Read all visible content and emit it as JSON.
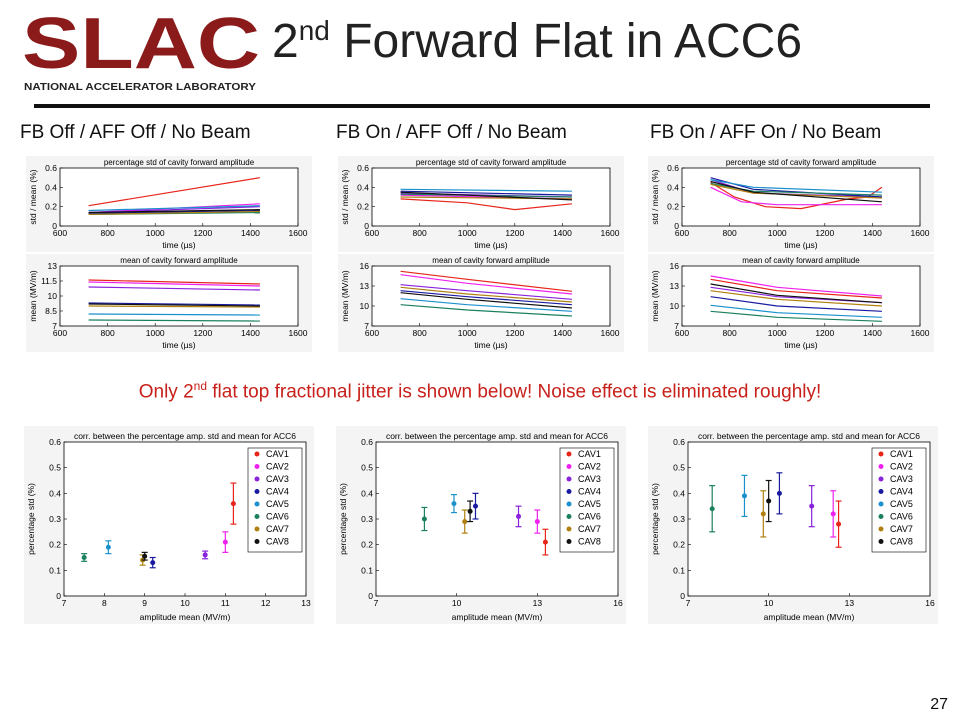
{
  "header": {
    "logo_text": "SLAC",
    "logo_subtitle": "NATIONAL ACCELERATOR LABORATORY",
    "title_main": "2",
    "title_sup": "nd",
    "title_rest": " Forward Flat in ACC6"
  },
  "subtitles": [
    "FB Off / AFF Off / No Beam",
    "FB On / AFF Off / No Beam",
    "FB On / AFF On / No Beam"
  ],
  "note": {
    "before": "Only 2",
    "sup": "nd",
    "after": " flat top fractional jitter is shown below! Noise effect is eliminated roughly!"
  },
  "page_number": "27",
  "colors": {
    "logo": "#8b1a1a",
    "note": "#c8201a",
    "cav": [
      "#e8251a",
      "#ee22ee",
      "#8822dd",
      "#1a1aa0",
      "#1a90cc",
      "#1a8060",
      "#b08010",
      "#111111"
    ]
  },
  "chart_data": [
    {
      "type": "line",
      "title": "percentage std of cavity forward amplitude",
      "xlabel": "time (µs)",
      "ylabel": "std / mean (%)",
      "xlim": [
        600,
        1600
      ],
      "ylim": [
        0,
        0.6
      ],
      "xticks": [
        600,
        800,
        1000,
        1200,
        1400,
        1600
      ],
      "yticks": [
        0,
        0.2,
        0.4,
        0.6
      ],
      "yticklabels": [
        "0",
        "0.2",
        "0.4",
        "0.6"
      ],
      "series": [
        {
          "values": [
            [
              720,
              0.21
            ],
            [
              1440,
              0.5
            ]
          ]
        },
        {
          "values": [
            [
              720,
              0.14
            ],
            [
              1440,
              0.23
            ]
          ]
        },
        {
          "values": [
            [
              720,
              0.14
            ],
            [
              1440,
              0.2
            ]
          ]
        },
        {
          "values": [
            [
              720,
              0.13
            ],
            [
              1440,
              0.16
            ]
          ]
        },
        {
          "values": [
            [
              720,
              0.16
            ],
            [
              1440,
              0.21
            ]
          ]
        },
        {
          "values": [
            [
              720,
              0.12
            ],
            [
              1440,
              0.14
            ]
          ]
        },
        {
          "values": [
            [
              720,
              0.12
            ],
            [
              1440,
              0.15
            ]
          ]
        },
        {
          "values": [
            [
              720,
              0.14
            ],
            [
              1440,
              0.17
            ]
          ]
        }
      ]
    },
    {
      "type": "line",
      "title": "mean of cavity forward amplitude",
      "xlabel": "time (µs)",
      "ylabel": "mean (MV/m)",
      "xlim": [
        600,
        1600
      ],
      "ylim": [
        7,
        13
      ],
      "xticks": [
        600,
        800,
        1000,
        1200,
        1400,
        1600
      ],
      "yticks": [
        7,
        8.5,
        10,
        11.5,
        13
      ],
      "yticklabels": [
        "7",
        "8.5",
        "10",
        "11.5",
        "13"
      ],
      "series": [
        {
          "values": [
            [
              720,
              11.6
            ],
            [
              1440,
              11.2
            ]
          ]
        },
        {
          "values": [
            [
              720,
              11.4
            ],
            [
              1440,
              11.0
            ]
          ]
        },
        {
          "values": [
            [
              720,
              10.9
            ],
            [
              1440,
              10.6
            ]
          ]
        },
        {
          "values": [
            [
              720,
              9.3
            ],
            [
              1440,
              9.1
            ]
          ]
        },
        {
          "values": [
            [
              720,
              8.2
            ],
            [
              1440,
              8.1
            ]
          ]
        },
        {
          "values": [
            [
              720,
              7.6
            ],
            [
              1440,
              7.5
            ]
          ]
        },
        {
          "values": [
            [
              720,
              9.0
            ],
            [
              1440,
              8.9
            ]
          ]
        },
        {
          "values": [
            [
              720,
              9.2
            ],
            [
              1440,
              9.0
            ]
          ]
        }
      ]
    },
    {
      "type": "line",
      "title": "percentage std of cavity forward amplitude",
      "xlabel": "time (µs)",
      "ylabel": "std / mean (%)",
      "xlim": [
        600,
        1600
      ],
      "ylim": [
        0,
        0.6
      ],
      "xticks": [
        600,
        800,
        1000,
        1200,
        1400,
        1600
      ],
      "yticks": [
        0,
        0.2,
        0.4,
        0.6
      ],
      "yticklabels": [
        "0",
        "0.2",
        "0.4",
        "0.6"
      ],
      "series": [
        {
          "values": [
            [
              720,
              0.28
            ],
            [
              1000,
              0.24
            ],
            [
              1200,
              0.17
            ],
            [
              1440,
              0.23
            ]
          ]
        },
        {
          "values": [
            [
              720,
              0.32
            ],
            [
              1440,
              0.28
            ]
          ]
        },
        {
          "values": [
            [
              720,
              0.34
            ],
            [
              1440,
              0.3
            ]
          ]
        },
        {
          "values": [
            [
              720,
              0.36
            ],
            [
              1440,
              0.32
            ]
          ]
        },
        {
          "values": [
            [
              720,
              0.38
            ],
            [
              1440,
              0.36
            ]
          ]
        },
        {
          "values": [
            [
              720,
              0.33
            ],
            [
              1440,
              0.3
            ]
          ]
        },
        {
          "values": [
            [
              720,
              0.3
            ],
            [
              1440,
              0.28
            ]
          ]
        },
        {
          "values": [
            [
              720,
              0.35
            ],
            [
              1440,
              0.27
            ]
          ]
        }
      ]
    },
    {
      "type": "line",
      "title": "mean of cavity forward amplitude",
      "xlabel": "time (µs)",
      "ylabel": "mean (MV/m)",
      "xlim": [
        600,
        1600
      ],
      "ylim": [
        7,
        16
      ],
      "xticks": [
        600,
        800,
        1000,
        1200,
        1400,
        1600
      ],
      "yticks": [
        7,
        10,
        13,
        16
      ],
      "yticklabels": [
        "7",
        "10",
        "13",
        "16"
      ],
      "series": [
        {
          "values": [
            [
              720,
              15.2
            ],
            [
              1000,
              14.0
            ],
            [
              1440,
              12.2
            ]
          ]
        },
        {
          "values": [
            [
              720,
              14.7
            ],
            [
              1000,
              13.4
            ],
            [
              1440,
              11.8
            ]
          ]
        },
        {
          "values": [
            [
              720,
              13.2
            ],
            [
              1000,
              12.3
            ],
            [
              1440,
              11.0
            ]
          ]
        },
        {
          "values": [
            [
              720,
              12.3
            ],
            [
              1000,
              11.4
            ],
            [
              1440,
              10.2
            ]
          ]
        },
        {
          "values": [
            [
              720,
              11.1
            ],
            [
              1000,
              10.2
            ],
            [
              1440,
              9.2
            ]
          ]
        },
        {
          "values": [
            [
              720,
              10.2
            ],
            [
              1000,
              9.4
            ],
            [
              1440,
              8.5
            ]
          ]
        },
        {
          "values": [
            [
              720,
              12.8
            ],
            [
              1000,
              11.8
            ],
            [
              1440,
              10.6
            ]
          ]
        },
        {
          "values": [
            [
              720,
              12.0
            ],
            [
              1000,
              11.0
            ],
            [
              1440,
              9.7
            ]
          ]
        }
      ]
    },
    {
      "type": "line",
      "title": "percentage std of cavity forward amplitude",
      "xlabel": "time (µs)",
      "ylabel": "std / mean (%)",
      "xlim": [
        600,
        1600
      ],
      "ylim": [
        0,
        0.6
      ],
      "xticks": [
        600,
        800,
        1000,
        1200,
        1400,
        1600
      ],
      "yticks": [
        0,
        0.2,
        0.4,
        0.6
      ],
      "yticklabels": [
        "0",
        "0.2",
        "0.4",
        "0.6"
      ],
      "series": [
        {
          "values": [
            [
              720,
              0.45
            ],
            [
              820,
              0.3
            ],
            [
              950,
              0.2
            ],
            [
              1100,
              0.18
            ],
            [
              1300,
              0.28
            ],
            [
              1380,
              0.3
            ],
            [
              1440,
              0.4
            ]
          ]
        },
        {
          "values": [
            [
              720,
              0.4
            ],
            [
              850,
              0.25
            ],
            [
              1000,
              0.22
            ],
            [
              1440,
              0.22
            ]
          ]
        },
        {
          "values": [
            [
              720,
              0.48
            ],
            [
              900,
              0.34
            ],
            [
              1440,
              0.3
            ]
          ]
        },
        {
          "values": [
            [
              720,
              0.5
            ],
            [
              900,
              0.38
            ],
            [
              1440,
              0.3
            ]
          ]
        },
        {
          "values": [
            [
              720,
              0.48
            ],
            [
              900,
              0.4
            ],
            [
              1440,
              0.35
            ]
          ]
        },
        {
          "values": [
            [
              720,
              0.44
            ],
            [
              900,
              0.36
            ],
            [
              1440,
              0.32
            ]
          ]
        },
        {
          "values": [
            [
              720,
              0.43
            ],
            [
              900,
              0.34
            ],
            [
              1440,
              0.29
            ]
          ]
        },
        {
          "values": [
            [
              720,
              0.46
            ],
            [
              900,
              0.35
            ],
            [
              1440,
              0.25
            ]
          ]
        }
      ]
    },
    {
      "type": "line",
      "title": "mean of cavity forward amplitude",
      "xlabel": "time (µs)",
      "ylabel": "mean (MV/m)",
      "xlim": [
        600,
        1600
      ],
      "ylim": [
        7,
        16
      ],
      "xticks": [
        600,
        800,
        1000,
        1200,
        1400,
        1600
      ],
      "yticks": [
        7,
        10,
        13,
        16
      ],
      "yticklabels": [
        "7",
        "10",
        "13",
        "16"
      ],
      "series": [
        {
          "values": [
            [
              720,
              14.0
            ],
            [
              1000,
              12.3
            ],
            [
              1440,
              11.2
            ]
          ]
        },
        {
          "values": [
            [
              720,
              14.5
            ],
            [
              1000,
              12.8
            ],
            [
              1440,
              11.5
            ]
          ]
        },
        {
          "values": [
            [
              720,
              12.8
            ],
            [
              1000,
              11.4
            ],
            [
              1440,
              10.5
            ]
          ]
        },
        {
          "values": [
            [
              720,
              11.4
            ],
            [
              1000,
              10.0
            ],
            [
              1440,
              9.2
            ]
          ]
        },
        {
          "values": [
            [
              720,
              10.1
            ],
            [
              1000,
              9.0
            ],
            [
              1440,
              8.3
            ]
          ]
        },
        {
          "values": [
            [
              720,
              9.2
            ],
            [
              1000,
              8.3
            ],
            [
              1440,
              7.7
            ]
          ]
        },
        {
          "values": [
            [
              720,
              12.3
            ],
            [
              1000,
              11.0
            ],
            [
              1440,
              10.0
            ]
          ]
        },
        {
          "values": [
            [
              720,
              13.3
            ],
            [
              1000,
              11.6
            ],
            [
              1440,
              10.5
            ]
          ]
        }
      ]
    },
    {
      "type": "scatter",
      "title": "corr. between the percentage amp. std and mean for ACC6",
      "xlabel": "amplitude mean (MV/m)",
      "ylabel": "percentage std (%)",
      "xlim": [
        7,
        13
      ],
      "ylim": [
        0,
        0.6
      ],
      "xticks": [
        7,
        8,
        9,
        10,
        11,
        12,
        13
      ],
      "yticks": [
        0,
        0.1,
        0.2,
        0.3,
        0.4,
        0.5,
        0.6
      ],
      "legend": [
        "CAV1",
        "CAV2",
        "CAV3",
        "CAV4",
        "CAV5",
        "CAV6",
        "CAV7",
        "CAV8"
      ],
      "points": [
        {
          "x": 11.2,
          "y": 0.36,
          "err": 0.08
        },
        {
          "x": 11.0,
          "y": 0.21,
          "err": 0.04
        },
        {
          "x": 10.5,
          "y": 0.16,
          "err": 0.015
        },
        {
          "x": 9.2,
          "y": 0.13,
          "err": 0.02
        },
        {
          "x": 8.1,
          "y": 0.19,
          "err": 0.025
        },
        {
          "x": 7.5,
          "y": 0.15,
          "err": 0.015
        },
        {
          "x": 8.95,
          "y": 0.14,
          "err": 0.02
        },
        {
          "x": 9.0,
          "y": 0.155,
          "err": 0.015
        }
      ]
    },
    {
      "type": "scatter",
      "title": "corr. between the percentage amp. std and mean for ACC6",
      "xlabel": "amplitude mean (MV/m)",
      "ylabel": "percentage std (%)",
      "xlim": [
        7,
        16
      ],
      "ylim": [
        0,
        0.6
      ],
      "xticks": [
        7,
        10,
        13,
        16
      ],
      "yticks": [
        0,
        0.1,
        0.2,
        0.3,
        0.4,
        0.5,
        0.6
      ],
      "legend": [
        "CAV1",
        "CAV2",
        "CAV3",
        "CAV4",
        "CAV5",
        "CAV6",
        "CAV7",
        "CAV8"
      ],
      "points": [
        {
          "x": 13.3,
          "y": 0.21,
          "err": 0.05
        },
        {
          "x": 13.0,
          "y": 0.29,
          "err": 0.045
        },
        {
          "x": 12.3,
          "y": 0.31,
          "err": 0.04
        },
        {
          "x": 10.7,
          "y": 0.35,
          "err": 0.05
        },
        {
          "x": 9.9,
          "y": 0.36,
          "err": 0.035
        },
        {
          "x": 8.8,
          "y": 0.3,
          "err": 0.045
        },
        {
          "x": 10.3,
          "y": 0.29,
          "err": 0.045
        },
        {
          "x": 10.5,
          "y": 0.33,
          "err": 0.04
        }
      ]
    },
    {
      "type": "scatter",
      "title": "corr. between the percentage amp. std and mean for ACC6",
      "xlabel": "amplitude mean (MV/m)",
      "ylabel": "percentage std (%)",
      "xlim": [
        7,
        16
      ],
      "ylim": [
        0,
        0.6
      ],
      "xticks": [
        7,
        10,
        13,
        16
      ],
      "yticks": [
        0,
        0.1,
        0.2,
        0.3,
        0.4,
        0.5,
        0.6
      ],
      "legend": [
        "CAV1",
        "CAV2",
        "CAV3",
        "CAV4",
        "CAV5",
        "CAV6",
        "CAV7",
        "CAV8"
      ],
      "points": [
        {
          "x": 12.6,
          "y": 0.28,
          "err": 0.09
        },
        {
          "x": 12.4,
          "y": 0.32,
          "err": 0.09
        },
        {
          "x": 11.6,
          "y": 0.35,
          "err": 0.08
        },
        {
          "x": 10.4,
          "y": 0.4,
          "err": 0.08
        },
        {
          "x": 9.1,
          "y": 0.39,
          "err": 0.08
        },
        {
          "x": 7.9,
          "y": 0.34,
          "err": 0.09
        },
        {
          "x": 9.8,
          "y": 0.32,
          "err": 0.09
        },
        {
          "x": 10.0,
          "y": 0.37,
          "err": 0.08
        }
      ]
    }
  ]
}
